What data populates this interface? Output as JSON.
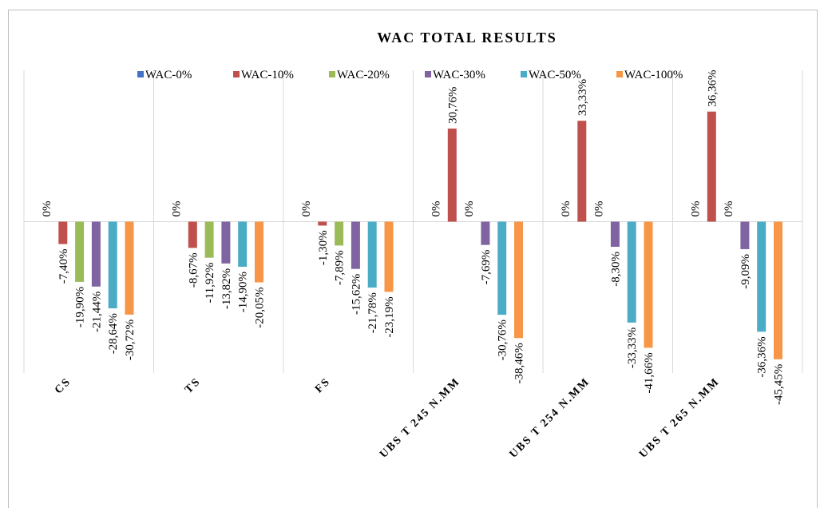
{
  "chart_data": {
    "type": "bar",
    "title": "WAC TOTAL RESULTS",
    "categories": [
      "CS",
      "TS",
      "FS",
      "UBS T 245 N.MM",
      "UBS T 254 N.MM",
      "UBS T 265 N.MM"
    ],
    "series": [
      {
        "name": "WAC-0%",
        "color": "#4472c4",
        "values": [
          0,
          0,
          0,
          0,
          0,
          0
        ],
        "value_labels": [
          "0%",
          "0%",
          "0%",
          "0%",
          "0%",
          "0%"
        ]
      },
      {
        "name": "WAC-10%",
        "color": "#c0504d",
        "values": [
          -7.4,
          -8.67,
          -1.3,
          30.76,
          33.33,
          36.36
        ],
        "value_labels": [
          "-7,40%",
          "-8,67%",
          "-1,30%",
          "30,76%",
          "33,33%",
          "36,36%"
        ]
      },
      {
        "name": "WAC-20%",
        "color": "#9bbb59",
        "values": [
          -19.9,
          -11.92,
          -7.89,
          0,
          0,
          0
        ],
        "value_labels": [
          "-19,90%",
          "-11,92%",
          "-7,89%",
          "0%",
          "0%",
          "0%"
        ]
      },
      {
        "name": "WAC-30%",
        "color": "#8064a2",
        "values": [
          -21.44,
          -13.82,
          -15.62,
          -7.69,
          -8.3,
          -9.09
        ],
        "value_labels": [
          "-21,44%",
          "-13,82%",
          "-15,62%",
          "-7,69%",
          "-8,30%",
          "-9,09%"
        ]
      },
      {
        "name": "WAC-50%",
        "color": "#4bacc6",
        "values": [
          -28.64,
          -14.9,
          -21.78,
          -30.76,
          -33.33,
          -36.36
        ],
        "value_labels": [
          "-28,64%",
          "-14,90%",
          "-21,78%",
          "-30,76%",
          "-33,33%",
          "-36,36%"
        ]
      },
      {
        "name": "WAC-100%",
        "color": "#f79646",
        "values": [
          -30.72,
          -20.05,
          -23.19,
          -38.46,
          -41.66,
          -45.45
        ],
        "value_labels": [
          "-30,72%",
          "-20,05%",
          "-23,19%",
          "-38,46%",
          "-41,66%",
          "-45,45%"
        ]
      }
    ],
    "ylim": [
      -50,
      50
    ],
    "legend": "top"
  }
}
